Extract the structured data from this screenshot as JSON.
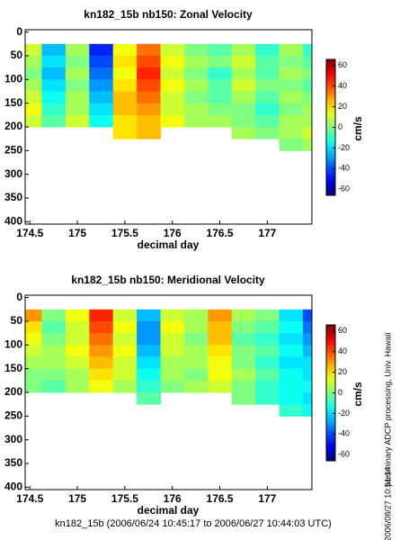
{
  "chart_data": [
    {
      "type": "heatmap",
      "title": "kn182_15b nb150: Zonal Velocity",
      "xlabel": "decimal day",
      "colorbar_label": "cm/s",
      "x": [
        174.5,
        174.75,
        175,
        175.25,
        175.5,
        175.75,
        176,
        176.25,
        176.5,
        176.75,
        177,
        177.25,
        177.5
      ],
      "y": [
        37.5,
        62.5,
        87.5,
        112.5,
        137.5,
        162.5,
        187.5,
        212.5,
        237.5
      ],
      "z": [
        [
          10,
          -25,
          5,
          -45,
          15,
          35,
          10,
          0,
          -5,
          5,
          -10,
          5,
          -10
        ],
        [
          5,
          -20,
          0,
          -40,
          20,
          40,
          15,
          5,
          0,
          10,
          -5,
          0,
          -5
        ],
        [
          0,
          -25,
          5,
          -35,
          15,
          45,
          10,
          0,
          -10,
          5,
          -5,
          5,
          0
        ],
        [
          5,
          -20,
          0,
          -30,
          20,
          40,
          15,
          5,
          -5,
          10,
          0,
          0,
          -5
        ],
        [
          10,
          -15,
          5,
          -25,
          25,
          35,
          10,
          0,
          -5,
          5,
          -5,
          5,
          0
        ],
        [
          15,
          -10,
          5,
          -20,
          25,
          30,
          10,
          5,
          0,
          0,
          -10,
          0,
          5
        ],
        [
          10,
          -5,
          10,
          -15,
          20,
          25,
          15,
          5,
          5,
          0,
          -5,
          5,
          5
        ],
        [
          null,
          null,
          null,
          null,
          20,
          25,
          null,
          null,
          null,
          5,
          0,
          5,
          10
        ],
        [
          null,
          null,
          null,
          null,
          null,
          null,
          null,
          null,
          null,
          null,
          null,
          0,
          5
        ]
      ],
      "xlim": [
        174.45,
        177.47
      ],
      "ylim": [
        -5,
        405
      ],
      "y_inverted": true,
      "xticks": [
        174.5,
        175,
        175.5,
        176,
        176.5,
        177
      ],
      "yticks": [
        0,
        50,
        100,
        150,
        200,
        250,
        300,
        350,
        400
      ],
      "clim": [
        -66,
        66
      ],
      "cticks": [
        -60,
        -40,
        -20,
        0,
        20,
        40,
        60
      ],
      "colormap": "jet"
    },
    {
      "type": "heatmap",
      "title": "kn182_15b nb150: Meridional Velocity",
      "xlabel": "decimal day",
      "colorbar_label": "cm/s",
      "x": [
        174.5,
        174.75,
        175,
        175.25,
        175.5,
        175.75,
        176,
        176.25,
        176.5,
        176.75,
        177,
        177.25,
        177.5
      ],
      "y": [
        37.5,
        62.5,
        87.5,
        112.5,
        137.5,
        162.5,
        187.5,
        212.5,
        237.5
      ],
      "z": [
        [
          30,
          0,
          15,
          45,
          10,
          -25,
          10,
          5,
          30,
          5,
          0,
          -20,
          -40
        ],
        [
          20,
          -5,
          10,
          40,
          15,
          -30,
          15,
          5,
          25,
          0,
          -5,
          -15,
          -35
        ],
        [
          15,
          0,
          10,
          35,
          10,
          -30,
          10,
          0,
          25,
          -5,
          -10,
          -20,
          -30
        ],
        [
          10,
          5,
          15,
          30,
          15,
          -25,
          10,
          5,
          20,
          0,
          -5,
          -15,
          -25
        ],
        [
          5,
          5,
          10,
          25,
          10,
          -20,
          5,
          5,
          15,
          0,
          -10,
          -20,
          -20
        ],
        [
          0,
          0,
          5,
          20,
          10,
          -15,
          5,
          0,
          15,
          5,
          -5,
          -15,
          -20
        ],
        [
          0,
          -5,
          5,
          15,
          5,
          -10,
          0,
          5,
          10,
          0,
          -10,
          -15,
          -15
        ],
        [
          null,
          null,
          null,
          null,
          null,
          -5,
          null,
          null,
          null,
          0,
          -10,
          -15,
          -20
        ],
        [
          null,
          null,
          null,
          null,
          null,
          null,
          null,
          null,
          null,
          null,
          null,
          -10,
          -15
        ]
      ],
      "xlim": [
        174.45,
        177.47
      ],
      "ylim": [
        -5,
        405
      ],
      "y_inverted": true,
      "xticks": [
        174.5,
        175,
        175.5,
        176,
        176.5,
        177
      ],
      "yticks": [
        0,
        50,
        100,
        150,
        200,
        250,
        300,
        350,
        400
      ],
      "clim": [
        -66,
        66
      ],
      "cticks": [
        -60,
        -40,
        -20,
        0,
        20,
        40,
        60
      ],
      "colormap": "jet"
    }
  ],
  "footer": "kn182_15b (2006/06/24 10:45:17 to 2006/06/27 10:44:03 UTC)",
  "side_note": "preliminary ADCP processing,   Univ. Hawaii",
  "timestamp": "2006/08/27 10:51:14"
}
